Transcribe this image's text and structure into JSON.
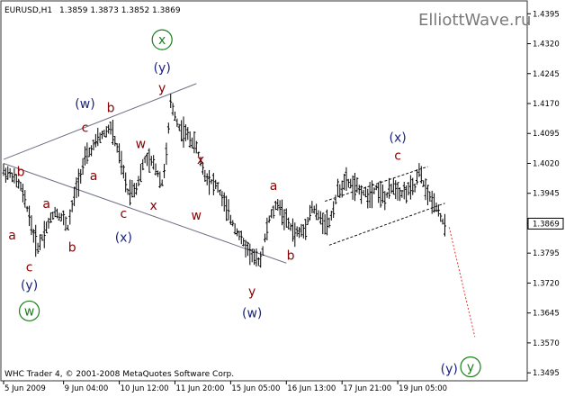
{
  "chart_data": {
    "type": "ohlc",
    "header": {
      "symbol_label": "EURUSD,H1",
      "quote_label": "1.3859 1.3873 1.3852 1.3869"
    },
    "watermark": "ElliottWave.ru",
    "footer": "WHC Trader 4, © 2001-2008 MetaQuotes Software Corp.",
    "ylim": [
      1.3475,
      1.4425
    ],
    "price_ticks": [
      "1.4395",
      "1.4320",
      "1.4245",
      "1.4170",
      "1.4095",
      "1.4020",
      "1.3945",
      "1.3869",
      "1.3795",
      "1.3720",
      "1.3645",
      "1.3570",
      "1.3495"
    ],
    "current_price": "1.3869",
    "x_range": [
      0,
      105
    ],
    "time_ticks": [
      {
        "label": "5 Jun 2009",
        "x": 0
      },
      {
        "label": "9 Jun 04:00",
        "x": 14
      },
      {
        "label": "10 Jun 12:00",
        "x": 27
      },
      {
        "label": "11 Jun 20:00",
        "x": 40
      },
      {
        "label": "15 Jun 05:00",
        "x": 53
      },
      {
        "label": "16 Jun 13:00",
        "x": 66
      },
      {
        "label": "17 Jun 21:00",
        "x": 79
      },
      {
        "label": "19 Jun 05:00",
        "x": 92
      }
    ],
    "price_path": [
      [
        0,
        1.4
      ],
      [
        2,
        1.399
      ],
      [
        4,
        1.396
      ],
      [
        6,
        1.389
      ],
      [
        7,
        1.384
      ],
      [
        8,
        1.381
      ],
      [
        10,
        1.386
      ],
      [
        12,
        1.39
      ],
      [
        14,
        1.388
      ],
      [
        15,
        1.386
      ],
      [
        17,
        1.396
      ],
      [
        19,
        1.403
      ],
      [
        22,
        1.408
      ],
      [
        25,
        1.411
      ],
      [
        27,
        1.404
      ],
      [
        29,
        1.395
      ],
      [
        31,
        1.396
      ],
      [
        33,
        1.403
      ],
      [
        35,
        1.402
      ],
      [
        37,
        1.397
      ],
      [
        38,
        1.404
      ],
      [
        39,
        1.417
      ],
      [
        41,
        1.411
      ],
      [
        43,
        1.409
      ],
      [
        45,
        1.406
      ],
      [
        47,
        1.399
      ],
      [
        50,
        1.396
      ],
      [
        53,
        1.388
      ],
      [
        56,
        1.382
      ],
      [
        59,
        1.3775
      ],
      [
        60,
        1.378
      ],
      [
        62,
        1.388
      ],
      [
        64,
        1.392
      ],
      [
        66,
        1.3875
      ],
      [
        68,
        1.3845
      ],
      [
        70,
        1.385
      ],
      [
        72,
        1.391
      ],
      [
        74,
        1.388
      ],
      [
        76,
        1.387
      ],
      [
        78,
        1.395
      ],
      [
        80,
        1.3975
      ],
      [
        82,
        1.396
      ],
      [
        85,
        1.394
      ],
      [
        87,
        1.396
      ],
      [
        89,
        1.393
      ],
      [
        91,
        1.3965
      ],
      [
        93,
        1.3945
      ],
      [
        96,
        1.396
      ],
      [
        97,
        1.4
      ],
      [
        99,
        1.394
      ],
      [
        101,
        1.3915
      ],
      [
        103,
        1.386
      ]
    ],
    "forecast_path": [
      [
        104,
        1.386
      ],
      [
        110,
        1.3585
      ]
    ],
    "channels": [
      {
        "x1": 0,
        "y1": 1.403,
        "x2": 45,
        "y2": 1.422
      },
      {
        "x1": 0,
        "y1": 1.402,
        "x2": 66,
        "y2": 1.377
      },
      {
        "x1": 75,
        "y1": 1.3925,
        "x2": 99,
        "y2": 1.4012,
        "dashed": true
      },
      {
        "x1": 76,
        "y1": 1.3815,
        "x2": 103,
        "y2": 1.392,
        "dashed": true
      }
    ],
    "annotations": [
      {
        "text": "b",
        "x": 4,
        "y": 1.4,
        "color": "#8b0000"
      },
      {
        "text": "a",
        "x": 2,
        "y": 1.384,
        "color": "#8b0000"
      },
      {
        "text": "a",
        "x": 10,
        "y": 1.392,
        "color": "#8b0000"
      },
      {
        "text": "c",
        "x": 6,
        "y": 1.376,
        "color": "#8b0000"
      },
      {
        "text": "(y)",
        "x": 6,
        "y": 1.3715,
        "color": "#1a237e"
      },
      {
        "text": "w",
        "x": 6,
        "y": 1.365,
        "color": "#1b7f1b",
        "circled": true
      },
      {
        "text": "b",
        "x": 16,
        "y": 1.381,
        "color": "#8b0000"
      },
      {
        "text": "a",
        "x": 21,
        "y": 1.399,
        "color": "#8b0000"
      },
      {
        "text": "c",
        "x": 19,
        "y": 1.411,
        "color": "#8b0000"
      },
      {
        "text": "(w)",
        "x": 19,
        "y": 1.417,
        "color": "#1a237e"
      },
      {
        "text": "b",
        "x": 25,
        "y": 1.416,
        "color": "#8b0000"
      },
      {
        "text": "c",
        "x": 28,
        "y": 1.3895,
        "color": "#8b0000"
      },
      {
        "text": "(x)",
        "x": 28,
        "y": 1.3835,
        "color": "#1a237e"
      },
      {
        "text": "w",
        "x": 32,
        "y": 1.407,
        "color": "#8b0000"
      },
      {
        "text": "x",
        "x": 35,
        "y": 1.3915,
        "color": "#8b0000"
      },
      {
        "text": "y",
        "x": 37,
        "y": 1.421,
        "color": "#8b0000"
      },
      {
        "text": "(y)",
        "x": 37,
        "y": 1.426,
        "color": "#1a237e"
      },
      {
        "text": "x",
        "x": 37,
        "y": 1.433,
        "color": "#1b7f1b",
        "circled": true
      },
      {
        "text": "x",
        "x": 46,
        "y": 1.403,
        "color": "#8b0000"
      },
      {
        "text": "w",
        "x": 45,
        "y": 1.389,
        "color": "#8b0000"
      },
      {
        "text": "a",
        "x": 63,
        "y": 1.3965,
        "color": "#8b0000"
      },
      {
        "text": "b",
        "x": 67,
        "y": 1.379,
        "color": "#8b0000"
      },
      {
        "text": "y",
        "x": 58,
        "y": 1.37,
        "color": "#8b0000"
      },
      {
        "text": "(w)",
        "x": 58,
        "y": 1.3645,
        "color": "#1a237e"
      },
      {
        "text": "c",
        "x": 92,
        "y": 1.404,
        "color": "#8b0000"
      },
      {
        "text": "(x)",
        "x": 92,
        "y": 1.4085,
        "color": "#1a237e"
      },
      {
        "text": "(y)",
        "x": 104,
        "y": 1.3505,
        "color": "#1a237e"
      },
      {
        "text": "y",
        "x": 109,
        "y": 1.351,
        "color": "#1b7f1b",
        "circled": true
      }
    ]
  }
}
